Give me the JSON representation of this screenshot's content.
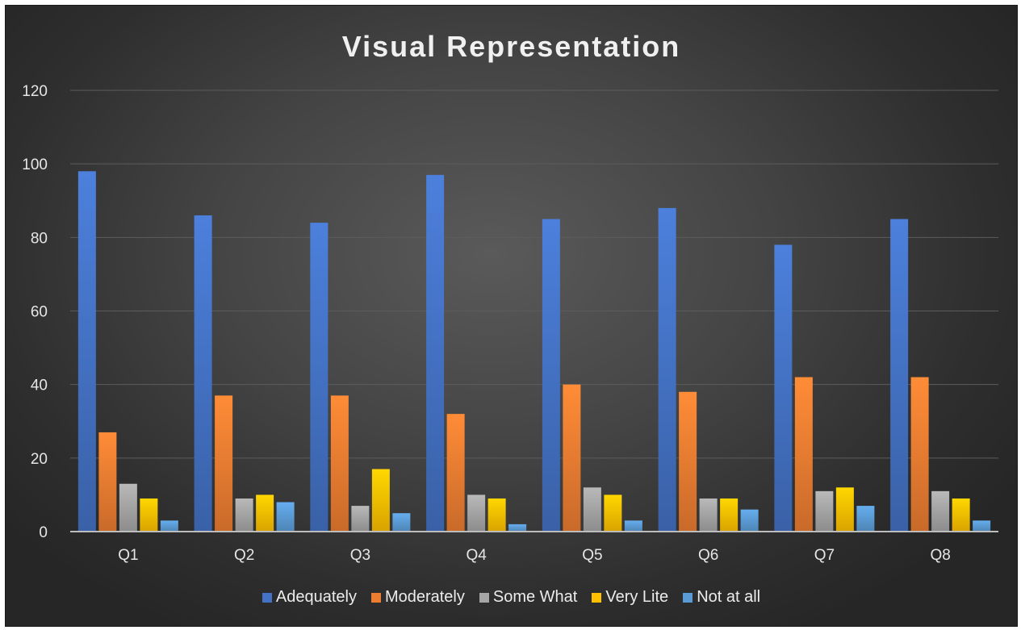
{
  "chart_data": {
    "type": "bar",
    "title": "Visual Representation",
    "xlabel": "",
    "ylabel": "",
    "ylim": [
      0,
      120
    ],
    "yticks": [
      0,
      20,
      40,
      60,
      80,
      100,
      120
    ],
    "grid": true,
    "legend_position": "bottom",
    "categories": [
      "Q1",
      "Q2",
      "Q3",
      "Q4",
      "Q5",
      "Q6",
      "Q7",
      "Q8"
    ],
    "series": [
      {
        "name": "Adequately",
        "color": "#4472c4",
        "values": [
          98,
          86,
          84,
          97,
          85,
          88,
          78,
          85
        ]
      },
      {
        "name": "Moderately",
        "color": "#ed7d31",
        "values": [
          27,
          37,
          37,
          32,
          40,
          38,
          42,
          42
        ]
      },
      {
        "name": "Some What",
        "color": "#a5a5a5",
        "values": [
          13,
          9,
          7,
          10,
          12,
          9,
          11,
          11
        ]
      },
      {
        "name": "Very Lite",
        "color": "#ffc000",
        "values": [
          9,
          10,
          17,
          9,
          10,
          9,
          12,
          9
        ]
      },
      {
        "name": "Not at all",
        "color": "#5b9bd5",
        "values": [
          3,
          8,
          5,
          2,
          3,
          6,
          7,
          3
        ]
      }
    ]
  }
}
